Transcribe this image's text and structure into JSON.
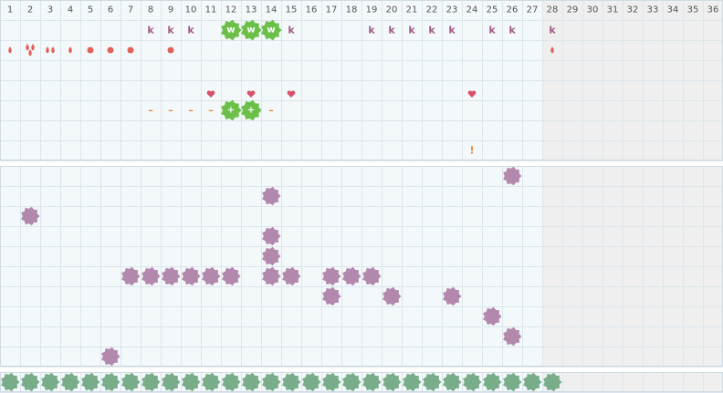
{
  "tracker": {
    "columns": [
      1,
      2,
      3,
      4,
      5,
      6,
      7,
      8,
      9,
      10,
      11,
      12,
      13,
      14,
      15,
      16,
      17,
      18,
      19,
      20,
      21,
      22,
      23,
      24,
      25,
      26,
      27,
      28,
      29,
      30,
      31,
      32,
      33,
      34,
      35,
      36
    ],
    "rows": [
      [
        null,
        null,
        null,
        null,
        null,
        null,
        null,
        "k",
        "k",
        "k",
        null,
        "w",
        "w",
        "w",
        "k",
        null,
        null,
        null,
        "k",
        "k",
        "k",
        "k",
        "k",
        null,
        "k",
        "k",
        null,
        "k",
        null,
        null,
        null,
        null,
        null,
        null,
        null,
        null
      ],
      [
        null,
        null,
        null,
        null,
        null,
        null,
        null,
        "–",
        "–",
        "–",
        "–",
        "+",
        "+",
        "–",
        null,
        null,
        null,
        null,
        null,
        null,
        null,
        null,
        null,
        null,
        null,
        null,
        null,
        null,
        null,
        null,
        null,
        null,
        null,
        null,
        null,
        null
      ],
      [
        null,
        null,
        null,
        null,
        null,
        null,
        null,
        null,
        null,
        null,
        null,
        null,
        null,
        null,
        null,
        null,
        null,
        null,
        null,
        null,
        null,
        null,
        null,
        "!",
        null,
        null,
        null,
        null,
        null,
        null,
        null,
        null,
        null,
        null,
        null,
        null
      ]
    ]
  }
}
